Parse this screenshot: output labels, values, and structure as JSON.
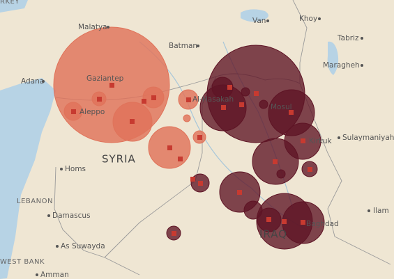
{
  "labels": {
    "turkey": "RKEY",
    "malatya": "Malatya",
    "van": "Van",
    "khoy": "Khoy",
    "tabriz": "Tabriz",
    "maragheh": "Maragheh",
    "batman": "Batman",
    "gaziantep": "Gaziantep",
    "aleppo": "Aleppo",
    "adana": "Adana",
    "syria": "SYRIA",
    "hasakah": "Al-Hasakah",
    "mosul": "Mosul",
    "kirkuk": "Kirkuk",
    "sulaymaniyah": "Sulaymaniyah",
    "homs": "Homs",
    "lebanon": "LEBANON",
    "damascus": "Damascus",
    "as_suwayda": "As Suwayda",
    "ilam": "Ilam",
    "baghdad": "Baghdad",
    "iraq": "IRAQ",
    "west_bank": "WEST BANK",
    "amman": "Amman"
  }
}
